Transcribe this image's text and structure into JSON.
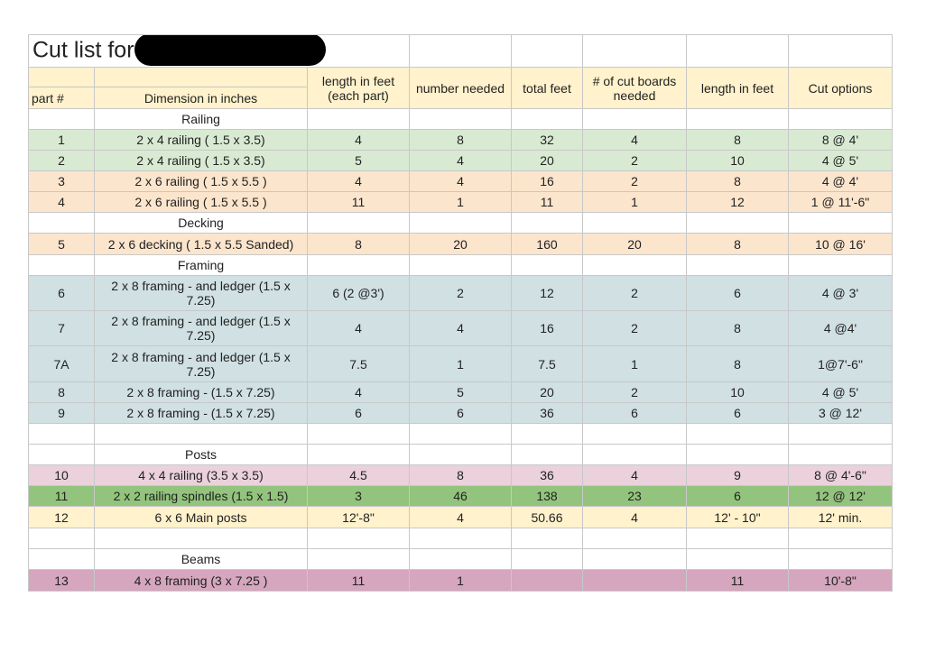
{
  "title": "Cut list for",
  "headers": {
    "part": "part #",
    "dimension": "Dimension in inches",
    "length_each": "length in feet (each part)",
    "number": "number needed",
    "total": "total feet",
    "cut_boards": "# of cut boards needed",
    "length": "length in feet",
    "cut_options": "Cut options"
  },
  "sections": {
    "railing": "Railing",
    "decking": "Decking",
    "framing": "Framing",
    "posts": "Posts",
    "beams": "Beams"
  },
  "rows": [
    {
      "part": "1",
      "dim": "2 x 4 railing ( 1.5 x 3.5)",
      "len_each": "4",
      "number": "8",
      "total": "32",
      "cut_boards": "4",
      "length": "8",
      "cut": "8 @ 4'"
    },
    {
      "part": "2",
      "dim": "2 x 4 railing ( 1.5 x 3.5)",
      "len_each": "5",
      "number": "4",
      "total": "20",
      "cut_boards": "2",
      "length": "10",
      "cut": "4 @ 5'"
    },
    {
      "part": "3",
      "dim": "2 x 6 railing ( 1.5 x 5.5 )",
      "len_each": "4",
      "number": "4",
      "total": "16",
      "cut_boards": "2",
      "length": "8",
      "cut": "4 @ 4'"
    },
    {
      "part": "4",
      "dim": "2 x 6 railing ( 1.5 x 5.5 )",
      "len_each": "11",
      "number": "1",
      "total": "11",
      "cut_boards": "1",
      "length": "12",
      "cut": "1 @ 11'-6\""
    },
    {
      "part": "5",
      "dim": "2 x 6 decking ( 1.5 x 5.5 Sanded)",
      "len_each": "8",
      "number": "20",
      "total": "160",
      "cut_boards": "20",
      "length": "8",
      "cut": "10 @ 16'"
    },
    {
      "part": "6",
      "dim": "2 x 8 framing - and ledger       (1.5 x 7.25)",
      "len_each": "6 (2 @3')",
      "number": "2",
      "total": "12",
      "cut_boards": "2",
      "length": "6",
      "cut": "4 @ 3'"
    },
    {
      "part": "7",
      "dim": "2 x 8 framing - and ledger       (1.5 x 7.25)",
      "len_each": "4",
      "number": "4",
      "total": "16",
      "cut_boards": "2",
      "length": "8",
      "cut": "4 @4'"
    },
    {
      "part": "7A",
      "dim": "2 x 8 framing - and ledger       (1.5 x 7.25)",
      "len_each": "7.5",
      "number": "1",
      "total": "7.5",
      "cut_boards": "1",
      "length": "8",
      "cut": "1@7'-6\""
    },
    {
      "part": "8",
      "dim": "2 x 8 framing -      (1.5 x 7.25)",
      "len_each": "4",
      "number": "5",
      "total": "20",
      "cut_boards": "2",
      "length": "10",
      "cut": "4 @ 5'"
    },
    {
      "part": "9",
      "dim": "2 x 8 framing -      (1.5 x 7.25)",
      "len_each": "6",
      "number": "6",
      "total": "36",
      "cut_boards": "6",
      "length": "6",
      "cut": "3 @ 12'"
    },
    {
      "part": "10",
      "dim": "4 x 4 railing (3.5 x 3.5)",
      "len_each": "4.5",
      "number": "8",
      "total": "36",
      "cut_boards": "4",
      "length": "9",
      "cut": "8 @ 4'-6\""
    },
    {
      "part": "11",
      "dim": "2 x 2 railing spindles (1.5 x 1.5)",
      "len_each": "3",
      "number": "46",
      "total": "138",
      "cut_boards": "23",
      "length": "6",
      "cut": "12 @ 12'"
    },
    {
      "part": "12",
      "dim": "6 x 6 Main posts",
      "len_each": "12'-8\"",
      "number": "4",
      "total": "50.66",
      "cut_boards": "4",
      "length": "12' - 10\"",
      "cut": "12' min."
    },
    {
      "part": "13",
      "dim": "4 x 8 framing (3 x 7.25 )",
      "len_each": "11",
      "number": "1",
      "total": "",
      "cut_boards": "",
      "length": "11",
      "cut": "10'-8\""
    }
  ]
}
